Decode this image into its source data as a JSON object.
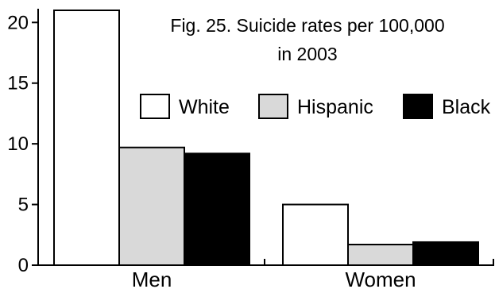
{
  "chart_data": {
    "type": "bar",
    "title": "Fig. 25. Suicide rates per 100,000",
    "subtitle": "in 2003",
    "xlabel": "",
    "ylabel": "",
    "categories": [
      "Men",
      "Women"
    ],
    "series": [
      {
        "name": "White",
        "values": [
          21.0,
          5.0
        ],
        "color": "#ffffff"
      },
      {
        "name": "Hispanic",
        "values": [
          9.7,
          1.7
        ],
        "color": "#d9d9d9"
      },
      {
        "name": "Black",
        "values": [
          9.2,
          1.9
        ],
        "color": "#000000"
      }
    ],
    "ylim": [
      0,
      21
    ],
    "yticks": [
      0,
      5,
      10,
      15,
      20
    ],
    "grid": false,
    "legend_position": "top-right"
  }
}
